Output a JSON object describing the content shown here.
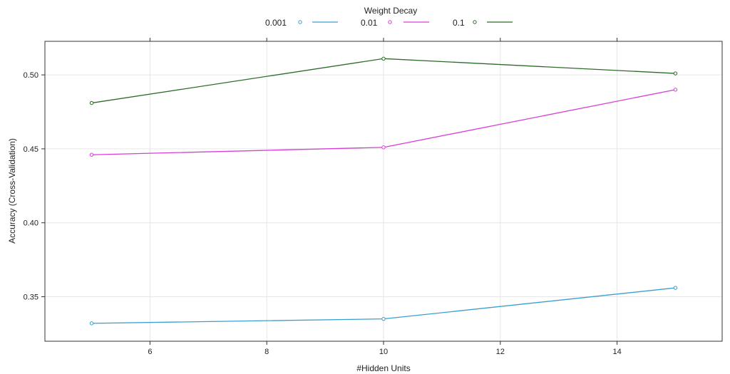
{
  "chart_data": {
    "type": "line",
    "title": "",
    "legend_title": "Weight Decay",
    "legend_position": "top",
    "xlabel": "#Hidden Units",
    "ylabel": "Accuracy (Cross-Validation)",
    "xlim": [
      4.2,
      15.8
    ],
    "ylim": [
      0.3199,
      0.5227
    ],
    "x_ticks": [
      6,
      8,
      10,
      12,
      14
    ],
    "y_ticks": [
      0.35,
      0.4,
      0.45,
      0.5
    ],
    "x_tick_labels": [
      "6",
      "8",
      "10",
      "12",
      "14"
    ],
    "y_tick_labels": [
      "0.35",
      "0.40",
      "0.45",
      "0.50"
    ],
    "grid": true,
    "x": [
      5,
      10,
      15
    ],
    "series": [
      {
        "name": "0.001",
        "color": "#3a9fcf",
        "values": [
          0.332,
          0.335,
          0.356
        ]
      },
      {
        "name": "0.01",
        "color": "#d63fd6",
        "values": [
          0.446,
          0.451,
          0.49
        ]
      },
      {
        "name": "0.1",
        "color": "#2f6b2a",
        "values": [
          0.481,
          0.511,
          0.501
        ]
      }
    ]
  }
}
